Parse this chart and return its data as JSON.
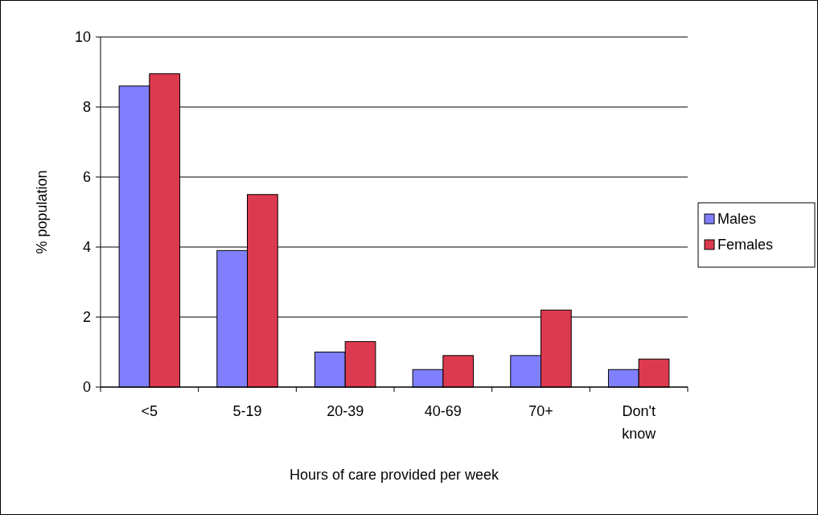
{
  "chart_data": {
    "type": "bar",
    "xlabel": "Hours of care provided per week",
    "ylabel": "% population",
    "categories": [
      "<5",
      "5-19",
      "20-39",
      "40-69",
      "70+",
      "Don't know"
    ],
    "series": [
      {
        "name": "Males",
        "color": "#8080ff",
        "values": [
          8.6,
          3.9,
          1.0,
          0.5,
          0.9,
          0.5
        ]
      },
      {
        "name": "Females",
        "color": "#dc3a4e",
        "values": [
          8.95,
          5.5,
          1.3,
          0.9,
          2.2,
          0.8
        ]
      }
    ],
    "ylim": [
      0,
      10
    ],
    "yticks": [
      0,
      2,
      4,
      6,
      8,
      10
    ],
    "grid": "y",
    "legend": "right"
  }
}
